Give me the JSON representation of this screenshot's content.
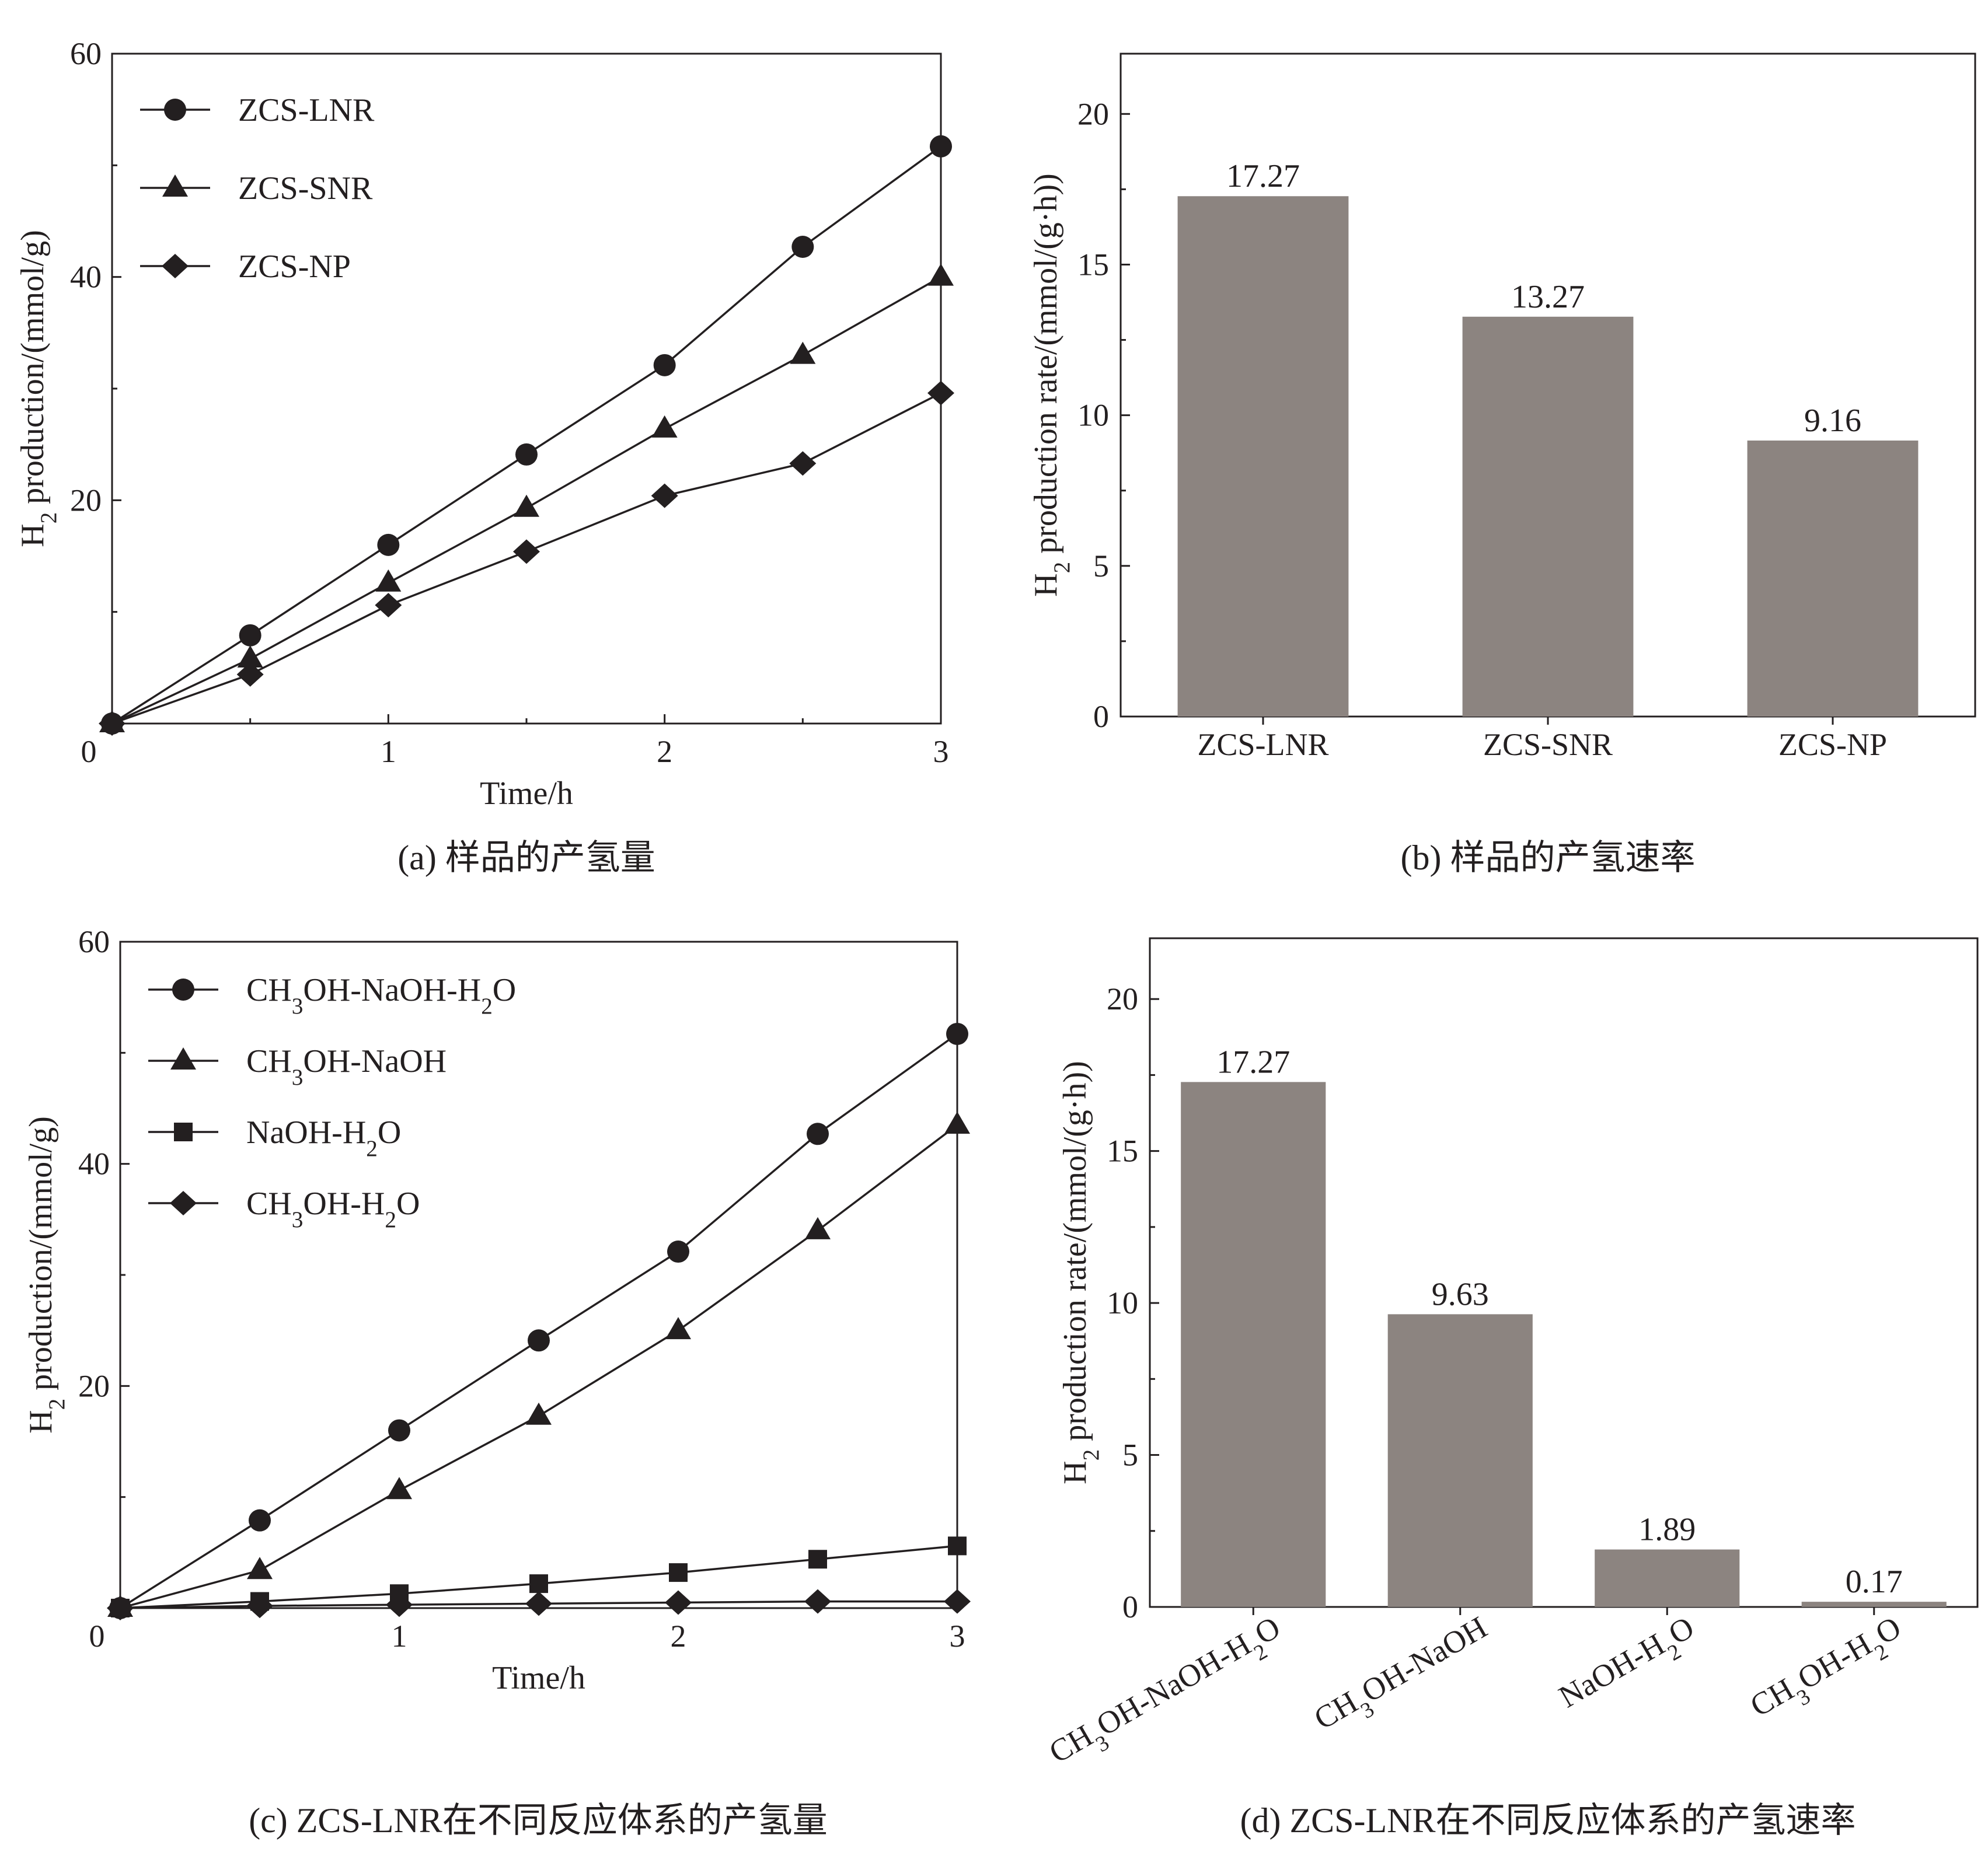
{
  "colors": {
    "bar": "#8c8480",
    "ink": "#231f20",
    "background": "#ffffff"
  },
  "chart_data": [
    {
      "id": "a",
      "type": "line",
      "caption": "(a) 样品的产氢量",
      "xlabel": "Time/h",
      "ylabel": "H₂ production/(mmol/g)",
      "xlim": [
        0,
        3
      ],
      "ylim": [
        0,
        60
      ],
      "xticks": [
        "0",
        "1",
        "2",
        "3"
      ],
      "yticks": [
        "20",
        "40",
        "60"
      ],
      "x": [
        0,
        0.5,
        1,
        1.5,
        2,
        2.5,
        3
      ],
      "legend_position": "top-left",
      "series": [
        {
          "name": "ZCS-LNR",
          "marker": "circle",
          "values": [
            0,
            7.9,
            16.0,
            24.1,
            32.1,
            42.7,
            51.7
          ]
        },
        {
          "name": "ZCS-SNR",
          "marker": "triangle",
          "values": [
            0,
            5.8,
            12.6,
            19.3,
            26.4,
            33.0,
            40.0
          ]
        },
        {
          "name": "ZCS-NP",
          "marker": "diamond",
          "values": [
            0,
            4.4,
            10.6,
            15.4,
            20.4,
            23.3,
            29.6
          ]
        }
      ]
    },
    {
      "id": "b",
      "type": "bar",
      "caption": "(b) 样品的产氢速率",
      "xlabel": "",
      "ylabel": "H₂ production rate/(mmol/(g·h))",
      "ylim": [
        0,
        22
      ],
      "yticks": [
        "0",
        "5",
        "10",
        "15",
        "20"
      ],
      "categories": [
        "ZCS-LNR",
        "ZCS-SNR",
        "ZCS-NP"
      ],
      "values": [
        17.27,
        13.27,
        9.16
      ],
      "value_labels": [
        "17.27",
        "13.27",
        "9.16"
      ]
    },
    {
      "id": "c",
      "type": "line",
      "caption": "(c) ZCS-LNR在不同反应体系的产氢量",
      "xlabel": "Time/h",
      "ylabel": "H₂ production/(mmol/g)",
      "xlim": [
        0,
        3
      ],
      "ylim": [
        0,
        60
      ],
      "xticks": [
        "0",
        "1",
        "2",
        "3"
      ],
      "yticks": [
        "20",
        "40",
        "60"
      ],
      "x": [
        0,
        0.5,
        1,
        1.5,
        2,
        2.5,
        3
      ],
      "legend_position": "top-left",
      "series": [
        {
          "name": "CH₃OH-NaOH-H₂O",
          "marker": "circle",
          "values": [
            0,
            7.9,
            16.0,
            24.1,
            32.1,
            42.7,
            51.7
          ]
        },
        {
          "name": "CH₃OH-NaOH",
          "marker": "triangle",
          "values": [
            0,
            3.4,
            10.6,
            17.3,
            25.0,
            34.0,
            43.5
          ]
        },
        {
          "name": "NaOH-H₂O",
          "marker": "square",
          "values": [
            0,
            0.6,
            1.3,
            2.2,
            3.2,
            4.4,
            5.6
          ]
        },
        {
          "name": "CH₃OH-H₂O",
          "marker": "diamond",
          "values": [
            0,
            0.2,
            0.3,
            0.4,
            0.5,
            0.6,
            0.6
          ]
        }
      ]
    },
    {
      "id": "d",
      "type": "bar",
      "caption": "(d) ZCS-LNR在不同反应体系的产氢速率",
      "xlabel": "",
      "ylabel": "H₂ production rate/(mmol/(g·h))",
      "ylim": [
        0,
        22
      ],
      "yticks": [
        "0",
        "5",
        "10",
        "15",
        "20"
      ],
      "categories": [
        "CH₃OH-NaOH-H₂O",
        "CH₃OH-NaOH",
        "NaOH-H₂O",
        "CH₃OH-H₂O"
      ],
      "values": [
        17.27,
        9.63,
        1.89,
        0.17
      ],
      "value_labels": [
        "17.27",
        "9.63",
        "1.89",
        "0.17"
      ]
    }
  ]
}
